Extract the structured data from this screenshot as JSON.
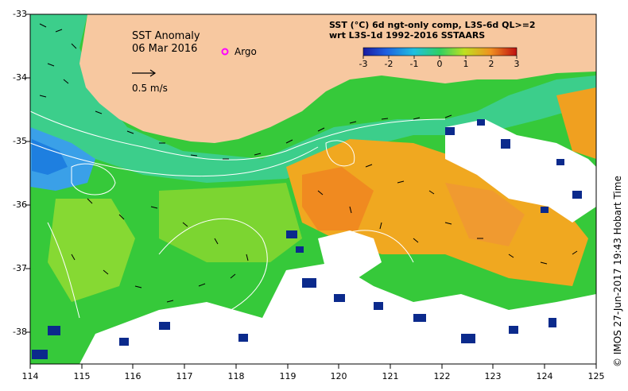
{
  "map": {
    "title": "SST Anomaly",
    "date": "06 Mar 2016",
    "argo_label": "Argo",
    "speed_label": "0.5 m/s",
    "product_line1": "SST (°C) 6d ngt-only comp, L3S-6d QL>=2",
    "product_line2": "wrt L3S-1d 1992-2016 SSTAARS",
    "credit": "© IMOS 27-Jun-2017 19:43 Hobart Time",
    "lon_ticks": [
      "114",
      "115",
      "116",
      "117",
      "118",
      "119",
      "120",
      "121",
      "122",
      "123",
      "124",
      "125"
    ],
    "lat_ticks": [
      "-33",
      "-34",
      "-35",
      "-36",
      "-37",
      "-38"
    ],
    "colorbar_ticks": [
      "-3",
      "-2",
      "-1",
      "0",
      "1",
      "2",
      "3"
    ],
    "colors": {
      "land": "#f7c8a0",
      "cloud": "#ffffff",
      "ocean_green": "#33cc33",
      "anomaly_warm": "#f0a020",
      "anomaly_cool": "#1e90ff",
      "argo": "#ff00ff"
    }
  }
}
